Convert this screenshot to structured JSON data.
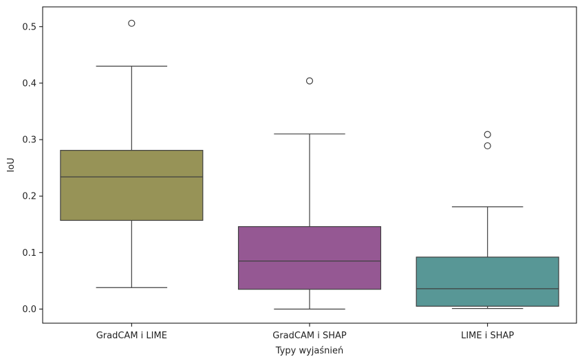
{
  "chart_data": {
    "type": "boxplot",
    "title": "",
    "xlabel": "Typy wyjaśnień",
    "ylabel": "IoU",
    "ylim": [
      -0.025,
      0.535
    ],
    "yticks": [
      "0.0",
      "0.1",
      "0.2",
      "0.3",
      "0.4",
      "0.5"
    ],
    "grid": false,
    "categories": [
      "GradCAM i LIME",
      "GradCAM i SHAP",
      "LIME i SHAP"
    ],
    "colors": [
      "#979357",
      "#955893",
      "#589796"
    ],
    "series": [
      {
        "category": "GradCAM i LIME",
        "whisker_low": 0.038,
        "q1": 0.157,
        "median": 0.234,
        "q3": 0.281,
        "whisker_high": 0.43,
        "outliers": [
          0.506
        ]
      },
      {
        "category": "GradCAM i SHAP",
        "whisker_low": 0.0,
        "q1": 0.035,
        "median": 0.085,
        "q3": 0.146,
        "whisker_high": 0.31,
        "outliers": [
          0.404
        ]
      },
      {
        "category": "LIME i SHAP",
        "whisker_low": 0.001,
        "q1": 0.005,
        "median": 0.036,
        "q3": 0.092,
        "whisker_high": 0.181,
        "outliers": [
          0.309,
          0.289
        ]
      }
    ]
  }
}
